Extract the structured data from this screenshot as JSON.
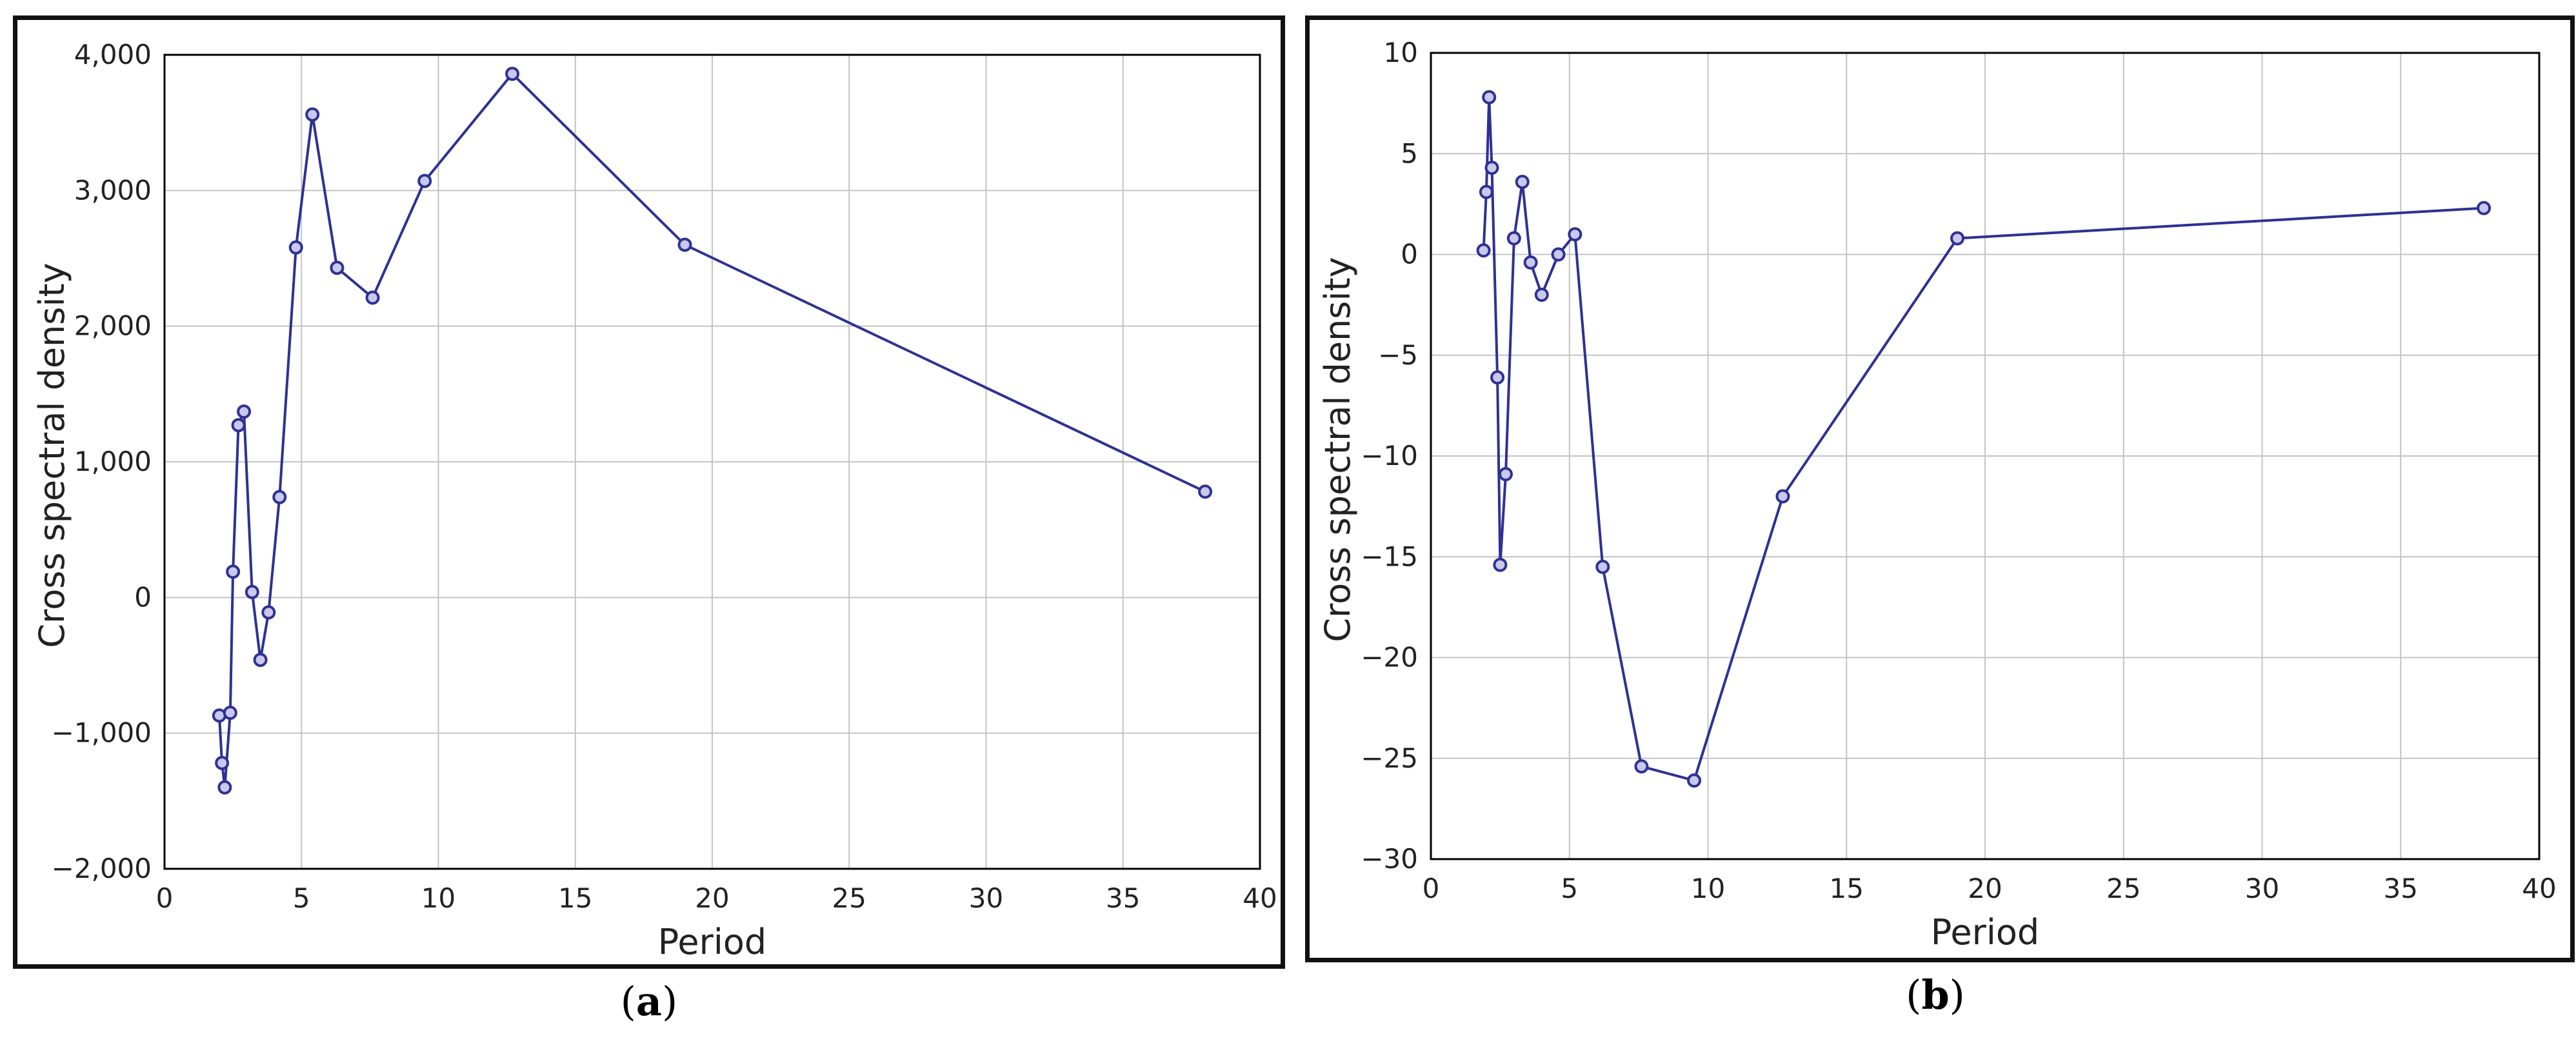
{
  "panels": [
    {
      "caption_letter": "a",
      "chart_data": {
        "type": "line",
        "xlabel": "Period",
        "ylabel": "Cross spectral density",
        "xlim": [
          0,
          40
        ],
        "ylim": [
          -2000,
          4000
        ],
        "xticks": [
          0,
          5,
          10,
          15,
          20,
          25,
          30,
          35,
          40
        ],
        "yticks": [
          -2000,
          -1000,
          0,
          1000,
          2000,
          3000,
          4000
        ],
        "xtick_labels": [
          "0",
          "5",
          "10",
          "15",
          "20",
          "25",
          "30",
          "35",
          "40"
        ],
        "ytick_labels": [
          "−2,000",
          "−1,000",
          "0",
          "1,000",
          "2,000",
          "3,000",
          "4,000"
        ],
        "grid": true,
        "series": [
          {
            "x": [
              2.0,
              2.1,
              2.2,
              2.4,
              2.5,
              2.7,
              2.9,
              3.2,
              3.5,
              3.8,
              4.2,
              4.8,
              5.4,
              6.3,
              7.6,
              9.5,
              12.7,
              19.0,
              38.0
            ],
            "y": [
              -870,
              -1220,
              -1400,
              -850,
              190,
              1270,
              1370,
              40,
              -460,
              -110,
              740,
              2580,
              3560,
              2430,
              2210,
              3070,
              3860,
              2600,
              780
            ]
          }
        ]
      }
    },
    {
      "caption_letter": "b",
      "chart_data": {
        "type": "line",
        "xlabel": "Period",
        "ylabel": "Cross spectral density",
        "xlim": [
          0,
          40
        ],
        "ylim": [
          -30,
          10
        ],
        "xticks": [
          0,
          5,
          10,
          15,
          20,
          25,
          30,
          35,
          40
        ],
        "yticks": [
          -30,
          -25,
          -20,
          -15,
          -10,
          -5,
          0,
          5,
          10
        ],
        "xtick_labels": [
          "0",
          "5",
          "10",
          "15",
          "20",
          "25",
          "30",
          "35",
          "40"
        ],
        "ytick_labels": [
          "−30",
          "−25",
          "−20",
          "−15",
          "−10",
          "−5",
          "0",
          "5",
          "10"
        ],
        "grid": true,
        "series": [
          {
            "x": [
              1.9,
              2.0,
              2.1,
              2.2,
              2.4,
              2.5,
              2.7,
              3.0,
              3.3,
              3.6,
              4.0,
              4.6,
              5.2,
              6.2,
              7.6,
              9.5,
              12.7,
              19.0,
              38.0
            ],
            "y": [
              0.2,
              3.1,
              7.8,
              4.3,
              -6.1,
              -15.4,
              -10.9,
              0.8,
              3.6,
              -0.4,
              -2.0,
              0.0,
              1.0,
              -15.5,
              -25.4,
              -26.1,
              -12.0,
              0.8,
              2.3
            ]
          }
        ]
      }
    }
  ],
  "style": {
    "line_color": "#2e3192",
    "marker_fill": "#c9c8ee",
    "grid_color": "#c4c4c4",
    "axis_color": "#000000",
    "text_color": "#222222"
  }
}
